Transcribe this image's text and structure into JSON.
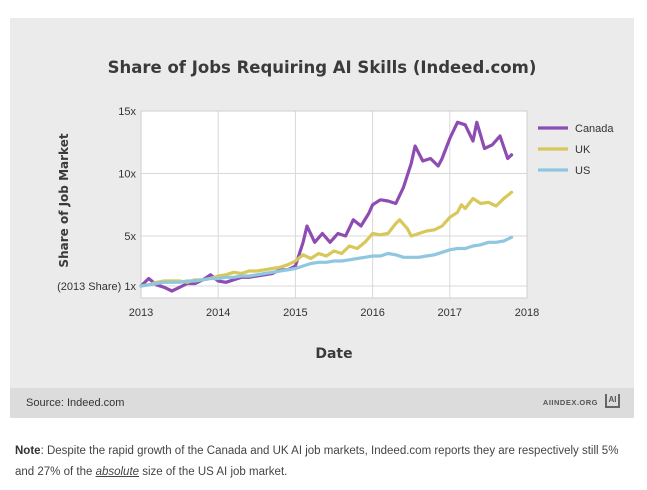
{
  "chart_data": {
    "type": "line",
    "title": "Share of Jobs Requiring AI Skills (Indeed.com)",
    "xlabel": "Date",
    "ylabel": "Share of Job Market",
    "x_ticks": [
      2013,
      2014,
      2015,
      2016,
      2017,
      2018
    ],
    "y_ticks": [
      {
        "value": 1,
        "label": "(2013 Share) 1x"
      },
      {
        "value": 5,
        "label": "5x"
      },
      {
        "value": 10,
        "label": "10x"
      },
      {
        "value": 15,
        "label": "15x"
      }
    ],
    "xlim": [
      2013,
      2018
    ],
    "ylim": [
      0,
      15
    ],
    "grid": true,
    "legend_position": "right",
    "series": [
      {
        "name": "Canada",
        "color": "#8e4cb3",
        "points": [
          [
            2013.0,
            1.0
          ],
          [
            2013.1,
            1.6
          ],
          [
            2013.2,
            1.1
          ],
          [
            2013.3,
            0.9
          ],
          [
            2013.4,
            0.6
          ],
          [
            2013.5,
            0.9
          ],
          [
            2013.6,
            1.2
          ],
          [
            2013.7,
            1.2
          ],
          [
            2013.8,
            1.5
          ],
          [
            2013.9,
            1.9
          ],
          [
            2014.0,
            1.4
          ],
          [
            2014.1,
            1.3
          ],
          [
            2014.2,
            1.5
          ],
          [
            2014.3,
            1.7
          ],
          [
            2014.4,
            1.7
          ],
          [
            2014.5,
            1.8
          ],
          [
            2014.6,
            1.9
          ],
          [
            2014.7,
            2.0
          ],
          [
            2014.8,
            2.3
          ],
          [
            2014.9,
            2.3
          ],
          [
            2015.0,
            2.6
          ],
          [
            2015.1,
            4.5
          ],
          [
            2015.15,
            5.8
          ],
          [
            2015.25,
            4.5
          ],
          [
            2015.35,
            5.2
          ],
          [
            2015.45,
            4.5
          ],
          [
            2015.55,
            5.2
          ],
          [
            2015.65,
            5.0
          ],
          [
            2015.75,
            6.3
          ],
          [
            2015.85,
            5.8
          ],
          [
            2015.95,
            6.8
          ],
          [
            2016.0,
            7.5
          ],
          [
            2016.1,
            7.9
          ],
          [
            2016.2,
            7.8
          ],
          [
            2016.3,
            7.6
          ],
          [
            2016.4,
            8.9
          ],
          [
            2016.5,
            10.8
          ],
          [
            2016.55,
            12.2
          ],
          [
            2016.65,
            11.0
          ],
          [
            2016.75,
            11.2
          ],
          [
            2016.85,
            10.6
          ],
          [
            2016.9,
            11.2
          ],
          [
            2017.0,
            12.8
          ],
          [
            2017.1,
            14.1
          ],
          [
            2017.2,
            13.9
          ],
          [
            2017.3,
            12.6
          ],
          [
            2017.35,
            14.1
          ],
          [
            2017.45,
            12.0
          ],
          [
            2017.55,
            12.3
          ],
          [
            2017.65,
            13.0
          ],
          [
            2017.75,
            11.2
          ],
          [
            2017.8,
            11.5
          ]
        ]
      },
      {
        "name": "UK",
        "color": "#d8c85a",
        "points": [
          [
            2013.0,
            1.0
          ],
          [
            2013.1,
            1.1
          ],
          [
            2013.2,
            1.3
          ],
          [
            2013.3,
            1.4
          ],
          [
            2013.4,
            1.4
          ],
          [
            2013.5,
            1.4
          ],
          [
            2013.6,
            1.3
          ],
          [
            2013.7,
            1.5
          ],
          [
            2013.8,
            1.5
          ],
          [
            2013.9,
            1.6
          ],
          [
            2014.0,
            1.8
          ],
          [
            2014.1,
            1.9
          ],
          [
            2014.2,
            2.1
          ],
          [
            2014.3,
            2.0
          ],
          [
            2014.4,
            2.2
          ],
          [
            2014.5,
            2.2
          ],
          [
            2014.6,
            2.3
          ],
          [
            2014.7,
            2.4
          ],
          [
            2014.8,
            2.5
          ],
          [
            2014.9,
            2.7
          ],
          [
            2015.0,
            3.0
          ],
          [
            2015.1,
            3.5
          ],
          [
            2015.2,
            3.2
          ],
          [
            2015.3,
            3.6
          ],
          [
            2015.4,
            3.4
          ],
          [
            2015.5,
            3.8
          ],
          [
            2015.6,
            3.6
          ],
          [
            2015.7,
            4.2
          ],
          [
            2015.8,
            4.0
          ],
          [
            2015.9,
            4.5
          ],
          [
            2016.0,
            5.2
          ],
          [
            2016.1,
            5.1
          ],
          [
            2016.2,
            5.2
          ],
          [
            2016.3,
            6.0
          ],
          [
            2016.35,
            6.3
          ],
          [
            2016.45,
            5.6
          ],
          [
            2016.5,
            5.0
          ],
          [
            2016.6,
            5.2
          ],
          [
            2016.7,
            5.4
          ],
          [
            2016.8,
            5.5
          ],
          [
            2016.9,
            5.8
          ],
          [
            2017.0,
            6.5
          ],
          [
            2017.1,
            6.9
          ],
          [
            2017.15,
            7.5
          ],
          [
            2017.2,
            7.2
          ],
          [
            2017.3,
            8.0
          ],
          [
            2017.4,
            7.6
          ],
          [
            2017.5,
            7.7
          ],
          [
            2017.6,
            7.4
          ],
          [
            2017.7,
            8.0
          ],
          [
            2017.8,
            8.5
          ]
        ]
      },
      {
        "name": "US",
        "color": "#8fc7e0",
        "points": [
          [
            2013.0,
            1.0
          ],
          [
            2013.1,
            1.1
          ],
          [
            2013.2,
            1.2
          ],
          [
            2013.3,
            1.3
          ],
          [
            2013.4,
            1.3
          ],
          [
            2013.5,
            1.3
          ],
          [
            2013.6,
            1.4
          ],
          [
            2013.7,
            1.4
          ],
          [
            2013.8,
            1.5
          ],
          [
            2013.9,
            1.6
          ],
          [
            2014.0,
            1.6
          ],
          [
            2014.1,
            1.7
          ],
          [
            2014.2,
            1.7
          ],
          [
            2014.3,
            1.8
          ],
          [
            2014.4,
            1.8
          ],
          [
            2014.5,
            1.9
          ],
          [
            2014.6,
            2.0
          ],
          [
            2014.7,
            2.1
          ],
          [
            2014.8,
            2.2
          ],
          [
            2014.9,
            2.3
          ],
          [
            2015.0,
            2.4
          ],
          [
            2015.1,
            2.6
          ],
          [
            2015.2,
            2.8
          ],
          [
            2015.3,
            2.9
          ],
          [
            2015.4,
            2.9
          ],
          [
            2015.5,
            3.0
          ],
          [
            2015.6,
            3.0
          ],
          [
            2015.7,
            3.1
          ],
          [
            2015.8,
            3.2
          ],
          [
            2015.9,
            3.3
          ],
          [
            2016.0,
            3.4
          ],
          [
            2016.1,
            3.4
          ],
          [
            2016.2,
            3.6
          ],
          [
            2016.3,
            3.5
          ],
          [
            2016.4,
            3.3
          ],
          [
            2016.5,
            3.3
          ],
          [
            2016.6,
            3.3
          ],
          [
            2016.7,
            3.4
          ],
          [
            2016.8,
            3.5
          ],
          [
            2016.9,
            3.7
          ],
          [
            2017.0,
            3.9
          ],
          [
            2017.1,
            4.0
          ],
          [
            2017.2,
            4.0
          ],
          [
            2017.3,
            4.2
          ],
          [
            2017.4,
            4.3
          ],
          [
            2017.5,
            4.5
          ],
          [
            2017.6,
            4.5
          ],
          [
            2017.7,
            4.6
          ],
          [
            2017.8,
            4.9
          ]
        ]
      }
    ]
  },
  "footer": {
    "source": "Source: Indeed.com",
    "brand": "AIINDEX.ORG",
    "brand_mark": "AI"
  },
  "note": {
    "label": "Note",
    "text_1": ": Despite the rapid growth of the Canada and UK AI job markets, Indeed.com reports they are respectively still 5% and 27% of the ",
    "emphasis": "absolute",
    "text_2": " size of the US AI job market."
  }
}
